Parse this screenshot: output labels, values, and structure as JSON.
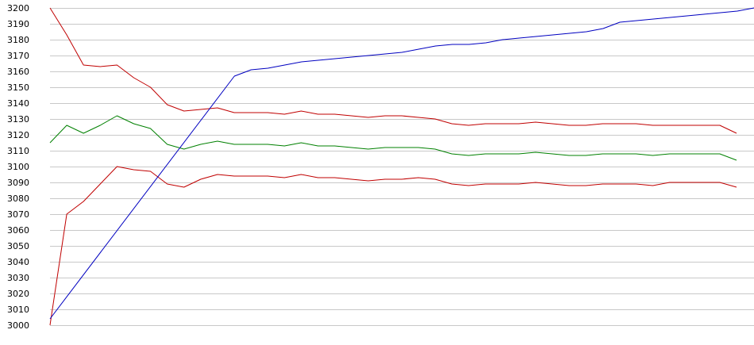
{
  "chart_data": {
    "type": "line",
    "title": "",
    "xlabel": "",
    "ylabel": "",
    "grid": true,
    "legend": "none",
    "ylim": [
      3000,
      3200
    ],
    "yticks": [
      3000,
      3010,
      3020,
      3030,
      3040,
      3050,
      3060,
      3070,
      3080,
      3090,
      3100,
      3110,
      3120,
      3130,
      3140,
      3150,
      3160,
      3170,
      3180,
      3190,
      3200
    ],
    "x": [
      0,
      1,
      2,
      3,
      4,
      5,
      6,
      7,
      8,
      9,
      10,
      11,
      12,
      13,
      14,
      15,
      16,
      17,
      18,
      19,
      20,
      21,
      22,
      23,
      24,
      25,
      26,
      27,
      28,
      29,
      30,
      31,
      32,
      33,
      34,
      35,
      36,
      37,
      38,
      39,
      40,
      41
    ],
    "series": [
      {
        "color": "#c00000",
        "values": [
          3200,
          3183,
          3164,
          3163,
          3164,
          3156,
          3150,
          3139,
          3135,
          3136,
          3137,
          3134,
          3134,
          3134,
          3133,
          3135,
          3133,
          3133,
          3132,
          3131,
          3132,
          3132,
          3131,
          3130,
          3127,
          3126,
          3127,
          3127,
          3127,
          3128,
          3127,
          3126,
          3126,
          3127,
          3127,
          3127,
          3126,
          3126,
          3126,
          3126,
          3126,
          3121
        ]
      },
      {
        "color": "#008000",
        "values": [
          3115,
          3126,
          3121,
          3126,
          3132,
          3127,
          3124,
          3114,
          3111,
          3114,
          3116,
          3114,
          3114,
          3114,
          3113,
          3115,
          3113,
          3113,
          3112,
          3111,
          3112,
          3112,
          3112,
          3111,
          3108,
          3107,
          3108,
          3108,
          3108,
          3109,
          3108,
          3107,
          3107,
          3108,
          3108,
          3108,
          3107,
          3108,
          3108,
          3108,
          3108,
          3104
        ]
      },
      {
        "color": "#c00000",
        "values": [
          3000,
          3070,
          3078,
          3089,
          3100,
          3098,
          3097,
          3089,
          3087,
          3092,
          3095,
          3094,
          3094,
          3094,
          3093,
          3095,
          3093,
          3093,
          3092,
          3091,
          3092,
          3092,
          3093,
          3092,
          3089,
          3088,
          3089,
          3089,
          3089,
          3090,
          3089,
          3088,
          3088,
          3089,
          3089,
          3089,
          3088,
          3090,
          3090,
          3090,
          3090,
          3087
        ]
      },
      {
        "color": "#0000c0",
        "points": [
          [
            0,
            3004
          ],
          [
            11,
            3157
          ],
          [
            12,
            3161
          ],
          [
            13,
            3162
          ],
          [
            14,
            3164
          ],
          [
            15,
            3166
          ],
          [
            16,
            3167
          ],
          [
            17,
            3168
          ],
          [
            18,
            3169
          ],
          [
            19,
            3170
          ],
          [
            20,
            3171
          ],
          [
            21,
            3172
          ],
          [
            22,
            3174
          ],
          [
            23,
            3176
          ],
          [
            24,
            3177
          ],
          [
            25,
            3177
          ],
          [
            26,
            3178
          ],
          [
            27,
            3180
          ],
          [
            28,
            3181
          ],
          [
            29,
            3182
          ],
          [
            30,
            3183
          ],
          [
            31,
            3184
          ],
          [
            32,
            3185
          ],
          [
            33,
            3187
          ],
          [
            34,
            3191
          ],
          [
            35,
            3192
          ],
          [
            36,
            3193
          ],
          [
            37,
            3194
          ],
          [
            38,
            3195
          ],
          [
            39,
            3196
          ],
          [
            40,
            3197
          ],
          [
            41,
            3198
          ],
          [
            42,
            3200
          ]
        ]
      }
    ]
  }
}
